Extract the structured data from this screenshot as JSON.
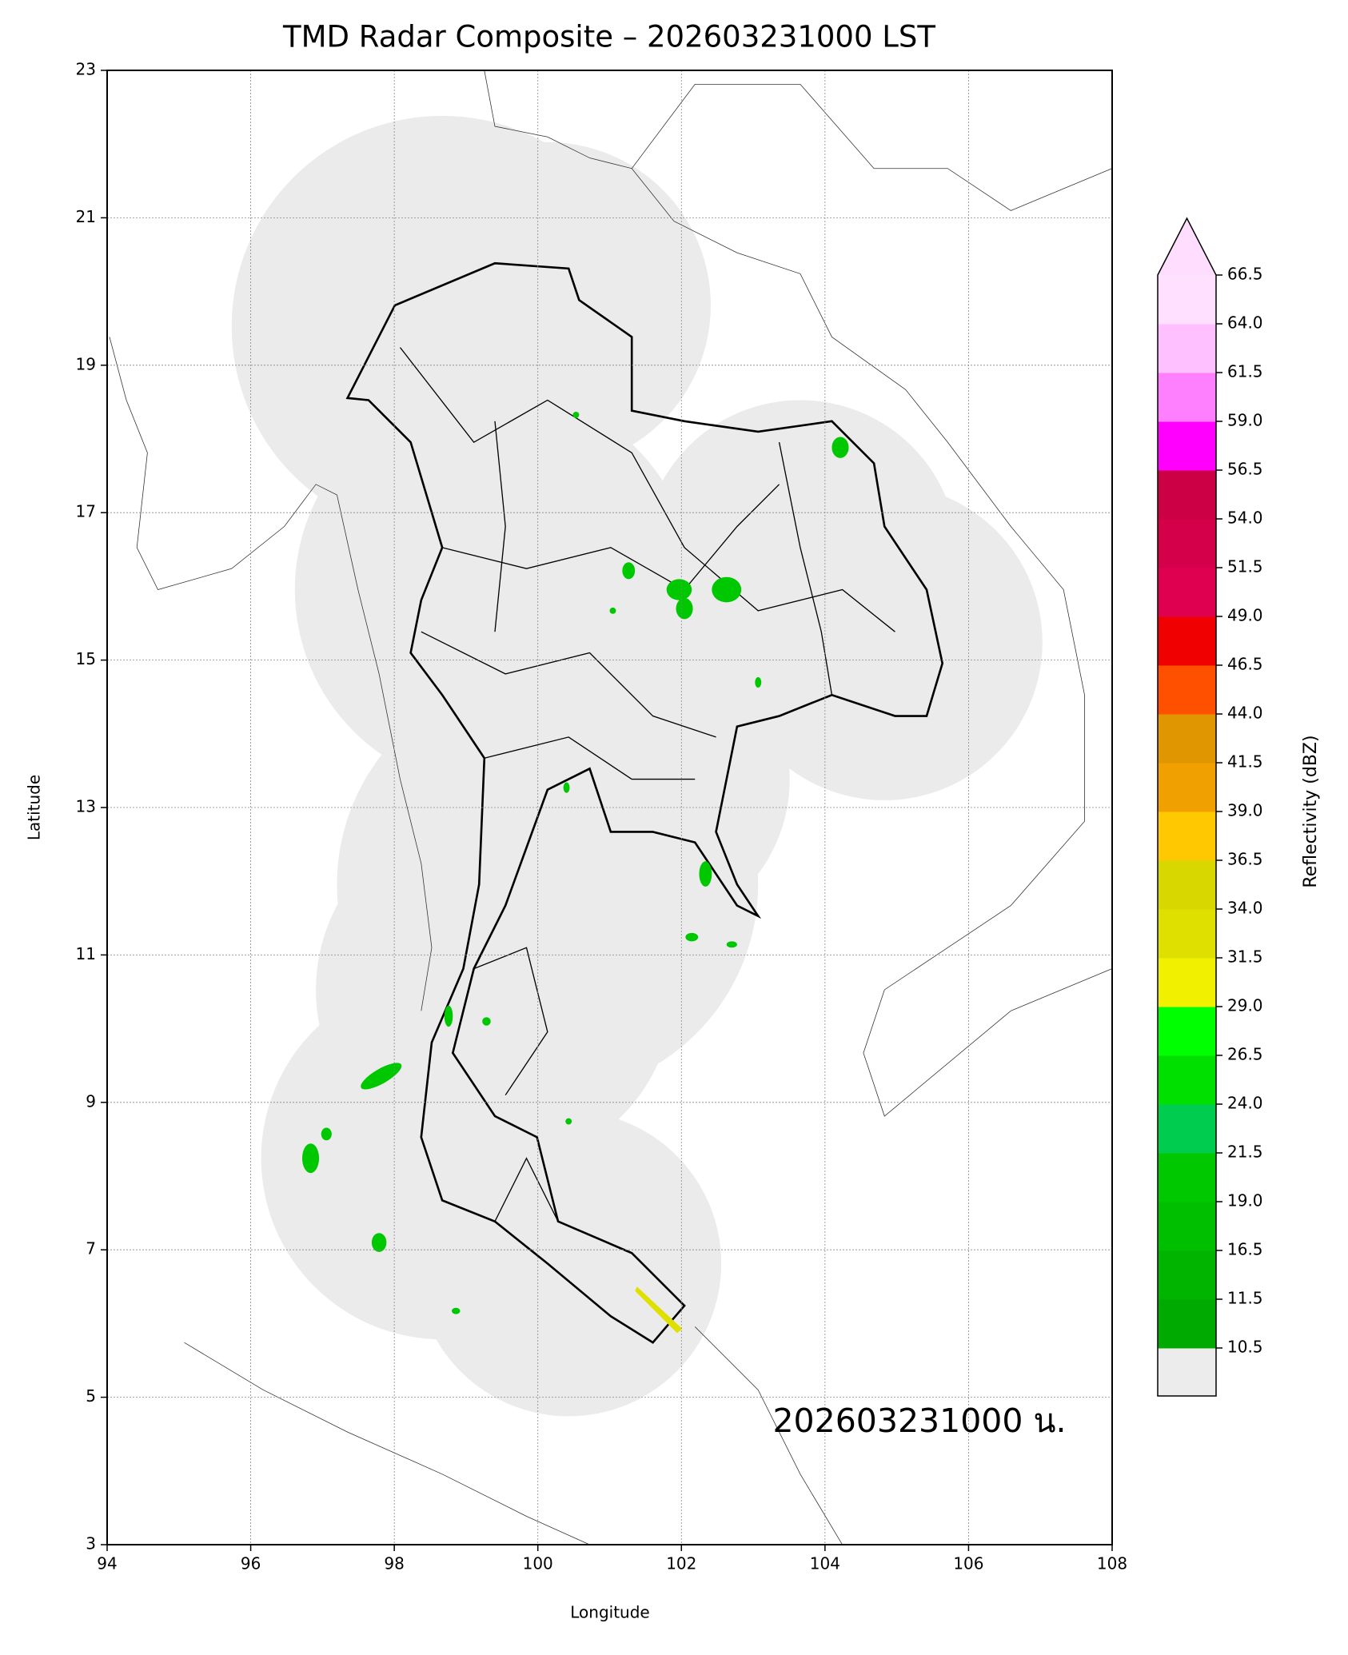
{
  "title": "TMD Radar Composite – 202603231000 LST",
  "x_axis": {
    "label": "Longitude",
    "lim": [
      94,
      108
    ],
    "ticks": [
      94,
      96,
      98,
      100,
      102,
      104,
      106,
      108
    ]
  },
  "y_axis": {
    "label": "Latitude",
    "lim": [
      3,
      23
    ],
    "ticks": [
      3,
      5,
      7,
      9,
      11,
      13,
      15,
      17,
      19,
      21,
      23
    ]
  },
  "colorbar": {
    "label": "Reflectivity (dBZ)",
    "ticks": [
      10.5,
      11.5,
      16.5,
      {
        "value": 19,
        "label": "19.0"
      },
      21.5,
      {
        "value": 24,
        "label": "24.0"
      },
      26.5,
      {
        "value": 29,
        "label": "29.0"
      },
      31.5,
      {
        "value": 34,
        "label": "34.0"
      },
      36.5,
      {
        "value": 39,
        "label": "39.0"
      },
      41.5,
      {
        "value": 44,
        "label": "44.0"
      },
      46.5,
      {
        "value": 49,
        "label": "49.0"
      },
      51.5,
      {
        "value": 54,
        "label": "54.0"
      },
      56.5,
      {
        "value": 59,
        "label": "59.0"
      },
      61.5,
      {
        "value": 64,
        "label": "64.0"
      },
      66.5
    ],
    "colors": [
      "#00aa00",
      "#00b400",
      "#00be00",
      "#00c800",
      "#00cc50",
      "#00e000",
      "#00ff00",
      "#f0f000",
      "#e0e000",
      "#d8d800",
      "#ffc800",
      "#f0a000",
      "#e09600",
      "#ff5000",
      "#f00000",
      "#e00050",
      "#d4004a",
      "#cc0044",
      "#ff00ff",
      "#ff80ff",
      "#ffc0ff",
      "#ffe0ff"
    ],
    "extend_color": "#ffddff",
    "under_color": "#ececec"
  },
  "annotation": "202603231000 น."
}
